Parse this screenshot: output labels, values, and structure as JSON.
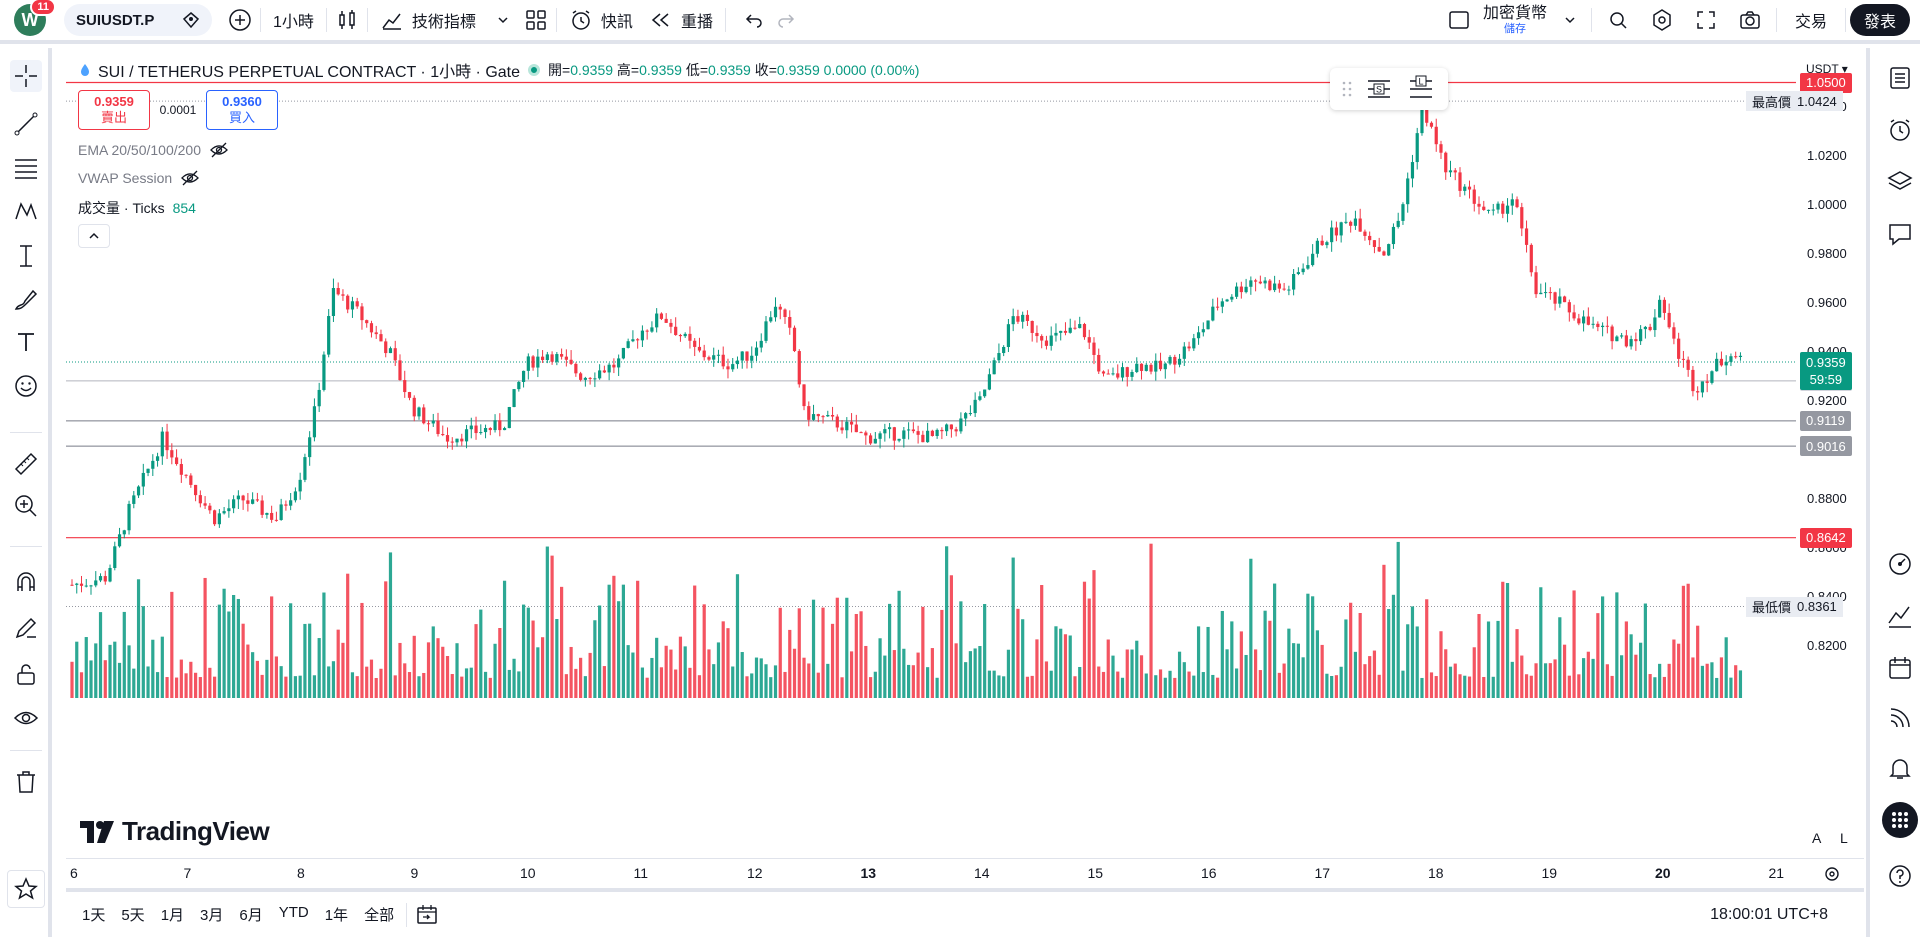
{
  "topbar": {
    "avatar_letter": "W",
    "notification_count": "11",
    "symbol": "SUIUSDT.P",
    "interval": "1小時",
    "indicators_label": "技術指標",
    "alert_label": "快訊",
    "replay_label": "重播",
    "crypto_label": "加密貨幣",
    "save_label": "儲存",
    "trade_label": "交易",
    "publish_label": "發表"
  },
  "legend": {
    "title": "SUI / TETHERUS PERPETUAL CONTRACT · 1小時 · Gate",
    "open_label": "開=",
    "open": "0.9359",
    "high_label": "高=",
    "high": "0.9359",
    "low_label": "低=",
    "low": "0.9359",
    "close_label": "收=",
    "close": "0.9359",
    "change": "0.0000 (0.00%)"
  },
  "trade": {
    "sell_price": "0.9359",
    "sell_label": "賣出",
    "spread": "0.0001",
    "buy_price": "0.9360",
    "buy_label": "買入"
  },
  "indicators": {
    "ema": "EMA 20/50/100/200",
    "vwap": "VWAP Session",
    "volume_label": "成交量 · Ticks",
    "volume_value": "854"
  },
  "price_scale": {
    "currency": "USDT",
    "ticks": [
      "1.0400",
      "1.0200",
      "1.0000",
      "0.9800",
      "0.9600",
      "0.9400",
      "0.9200",
      "0.8800",
      "0.8600",
      "0.8400",
      "0.8200"
    ],
    "high_label": "最高價",
    "high_value": "1.0424",
    "low_label": "最低價",
    "low_value": "0.8361",
    "last_price": "0.9359",
    "countdown": "59:59",
    "tags": [
      {
        "value": "1.0500",
        "color": "#f23645"
      },
      {
        "value": "0.9282",
        "color": "#d1d4dc"
      },
      {
        "value": "0.9119",
        "color": "#9598a1"
      },
      {
        "value": "0.9016",
        "color": "#9598a1"
      },
      {
        "value": "0.8642",
        "color": "#f23645"
      }
    ],
    "scale_buttons": [
      "A",
      "L"
    ]
  },
  "time_axis": [
    "6",
    "7",
    "8",
    "9",
    "10",
    "11",
    "12",
    "13",
    "14",
    "15",
    "16",
    "17",
    "18",
    "19",
    "20",
    "21"
  ],
  "bottombar": {
    "ranges": [
      "1天",
      "5天",
      "1月",
      "3月",
      "6月",
      "YTD",
      "1年",
      "全部"
    ],
    "clock": "18:00:01 UTC+8"
  },
  "watermark": "TradingView",
  "colors": {
    "up": "#089981",
    "down": "#f23645",
    "accent": "#2962ff"
  },
  "chart_data": {
    "type": "candlestick",
    "unit": "USDT",
    "y_range": [
      0.81,
      1.06
    ],
    "x_labels": [
      "6",
      "7",
      "8",
      "9",
      "10",
      "11",
      "12",
      "13",
      "14",
      "15",
      "16",
      "17",
      "18",
      "19",
      "20",
      "21"
    ],
    "days_keypoints": [
      [
        6.0,
        0.845
      ],
      [
        6.3,
        0.848
      ],
      [
        6.5,
        0.875
      ],
      [
        6.8,
        0.905
      ],
      [
        7.0,
        0.89
      ],
      [
        7.25,
        0.872
      ],
      [
        7.5,
        0.88
      ],
      [
        7.8,
        0.872
      ],
      [
        8.0,
        0.888
      ],
      [
        8.15,
        0.918
      ],
      [
        8.3,
        0.965
      ],
      [
        8.5,
        0.957
      ],
      [
        8.8,
        0.94
      ],
      [
        9.0,
        0.917
      ],
      [
        9.3,
        0.905
      ],
      [
        9.6,
        0.908
      ],
      [
        9.8,
        0.91
      ],
      [
        10.0,
        0.935
      ],
      [
        10.2,
        0.94
      ],
      [
        10.5,
        0.93
      ],
      [
        10.8,
        0.935
      ],
      [
        11.0,
        0.948
      ],
      [
        11.2,
        0.955
      ],
      [
        11.5,
        0.94
      ],
      [
        11.8,
        0.935
      ],
      [
        12.0,
        0.94
      ],
      [
        12.2,
        0.96
      ],
      [
        12.35,
        0.945
      ],
      [
        12.45,
        0.915
      ],
      [
        12.8,
        0.91
      ],
      [
        13.0,
        0.905
      ],
      [
        13.3,
        0.907
      ],
      [
        13.6,
        0.905
      ],
      [
        13.8,
        0.91
      ],
      [
        14.0,
        0.92
      ],
      [
        14.3,
        0.955
      ],
      [
        14.6,
        0.945
      ],
      [
        14.9,
        0.95
      ],
      [
        15.1,
        0.928
      ],
      [
        15.4,
        0.935
      ],
      [
        15.6,
        0.933
      ],
      [
        15.9,
        0.945
      ],
      [
        16.1,
        0.96
      ],
      [
        16.4,
        0.97
      ],
      [
        16.7,
        0.965
      ],
      [
        17.0,
        0.985
      ],
      [
        17.3,
        0.995
      ],
      [
        17.55,
        0.98
      ],
      [
        17.7,
        0.995
      ],
      [
        17.9,
        1.04
      ],
      [
        18.1,
        1.015
      ],
      [
        18.3,
        1.005
      ],
      [
        18.5,
        0.995
      ],
      [
        18.7,
        1.003
      ],
      [
        18.9,
        0.965
      ],
      [
        19.1,
        0.96
      ],
      [
        19.4,
        0.95
      ],
      [
        19.7,
        0.945
      ],
      [
        19.9,
        0.95
      ],
      [
        20.0,
        0.963
      ],
      [
        20.1,
        0.945
      ],
      [
        20.3,
        0.925
      ],
      [
        20.5,
        0.935
      ],
      [
        20.6,
        0.94
      ],
      [
        20.7,
        0.936
      ]
    ],
    "horizontal_levels": [
      1.05,
      0.9282,
      0.9119,
      0.9016,
      0.8642
    ],
    "last_price": 0.9359,
    "high": 1.0424,
    "low": 0.8361
  }
}
